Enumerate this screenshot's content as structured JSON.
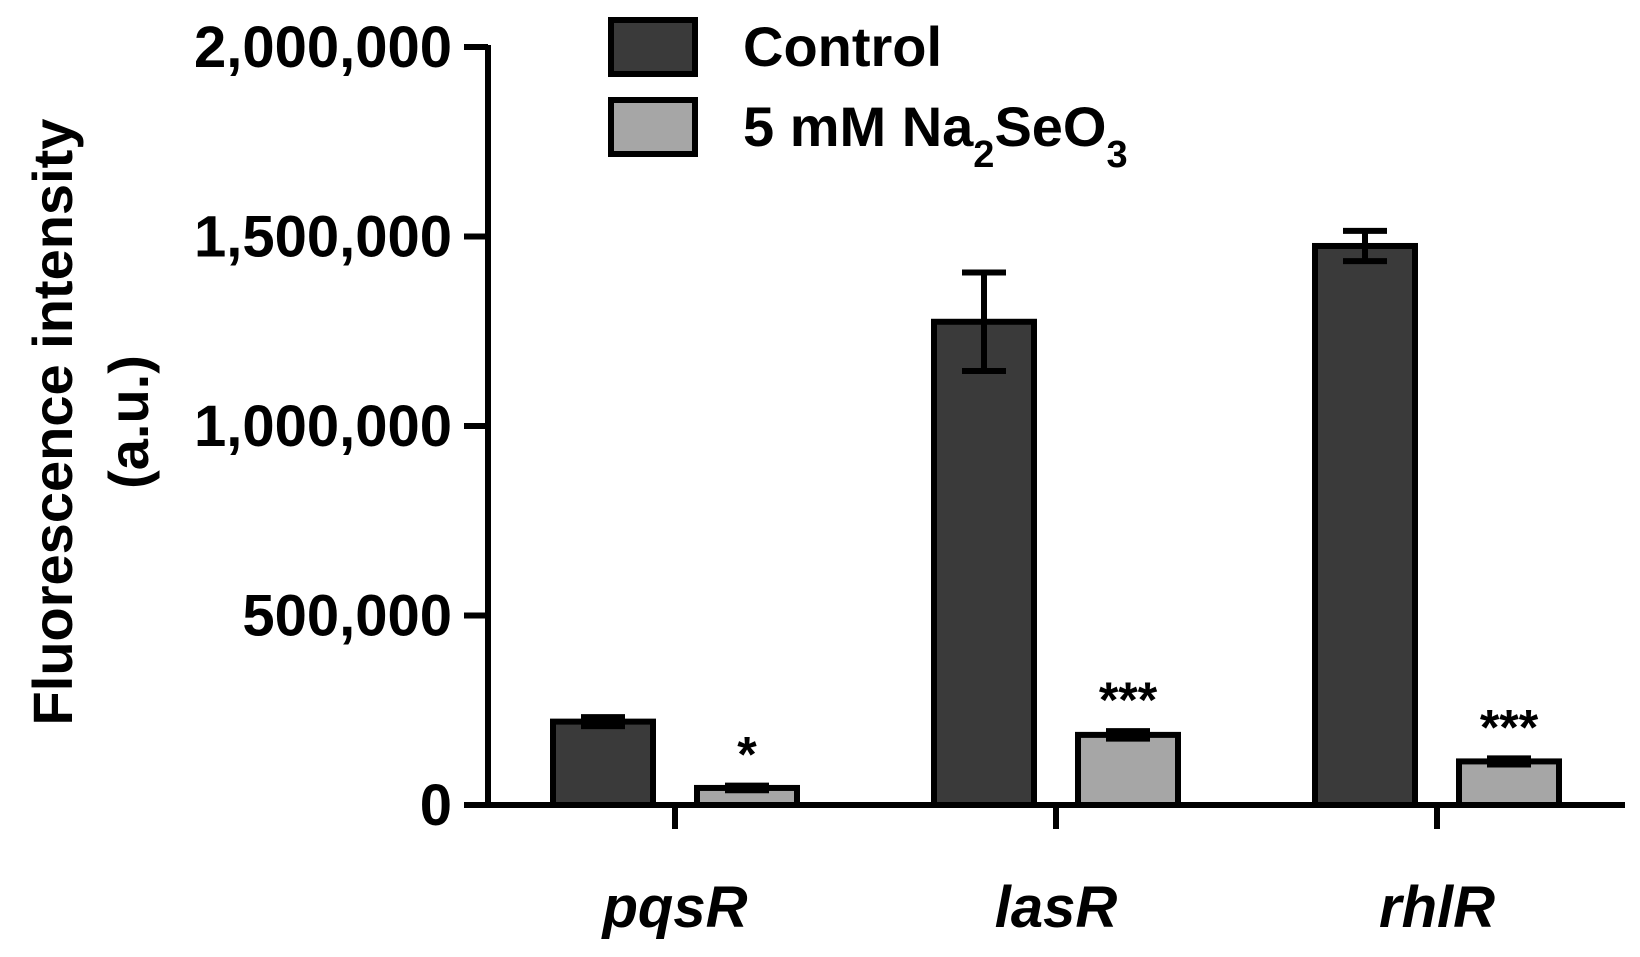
{
  "chart_data": {
    "type": "bar",
    "ylabel_line1": "Fluorescence intensity",
    "ylabel_line2": "(a.u.)",
    "ylim": [
      0,
      2000000
    ],
    "yticks": [
      0,
      500000,
      1000000,
      1500000,
      2000000
    ],
    "ytick_labels": [
      "0",
      "500,000",
      "1,000,000",
      "1,500,000",
      "2,000,000"
    ],
    "categories": [
      "pqsR",
      "lasR",
      "rhlR"
    ],
    "series": [
      {
        "name": "Control",
        "values": [
          220000,
          1275000,
          1475000
        ],
        "errors": [
          12000,
          130000,
          40000
        ],
        "color": "#3a3a3a"
      },
      {
        "name": "5 mM Na2SeO3",
        "name_parts": [
          "5 mM Na",
          "2",
          "SeO",
          "3"
        ],
        "values": [
          45000,
          185000,
          115000
        ],
        "errors": [
          6000,
          10000,
          8000
        ],
        "color": "#a6a6a6",
        "significance": [
          "*",
          "***",
          "***"
        ]
      }
    ],
    "legend_position": "top",
    "grid": false
  }
}
